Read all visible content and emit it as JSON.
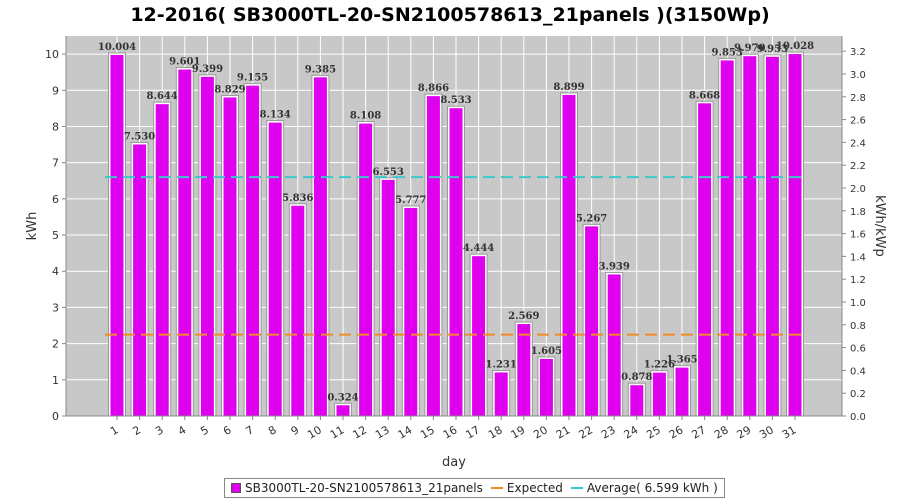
{
  "title": "12-2016( SB3000TL-20-SN2100578613_21panels )(3150Wp)",
  "colors": {
    "bar": "#e000f0",
    "bar_edge": "#ffffff",
    "bar_outline": "#9a9a9a",
    "plot_bg": "#c8c8c8",
    "grid": "#ffffff",
    "expected": "#f08c28",
    "average": "#3cc8c8"
  },
  "legend": {
    "series": "SB3000TL-20-SN2100578613_21panels",
    "expected": "Expected",
    "average": "Average( 6.599 kWh )"
  },
  "chart_data": {
    "type": "bar",
    "title": "12-2016( SB3000TL-20-SN2100578613_21panels )(3150Wp)",
    "xlabel": "day",
    "ylabel": "kWh",
    "y2label": "kWh/kWp",
    "ylim": [
      0,
      10.5
    ],
    "y2lim": [
      0,
      3.333
    ],
    "yticks": [
      "0",
      "1",
      "2",
      "3",
      "4",
      "5",
      "6",
      "7",
      "8",
      "9",
      "10"
    ],
    "y2ticks": [
      "0.0",
      "0.2",
      "0.4",
      "0.6",
      "0.8",
      "1.0",
      "1.2",
      "1.4",
      "1.6",
      "1.8",
      "2.0",
      "2.2",
      "2.4",
      "2.6",
      "2.8",
      "3.0",
      "3.2"
    ],
    "categories": [
      "1",
      "2",
      "3",
      "4",
      "5",
      "6",
      "7",
      "8",
      "9",
      "10",
      "11",
      "12",
      "13",
      "14",
      "15",
      "16",
      "17",
      "18",
      "19",
      "20",
      "21",
      "22",
      "23",
      "24",
      "25",
      "26",
      "27",
      "28",
      "29",
      "30",
      "31"
    ],
    "series": [
      {
        "name": "SB3000TL-20-SN2100578613_21panels",
        "values": [
          10.004,
          7.53,
          8.644,
          9.601,
          9.399,
          8.829,
          9.155,
          8.134,
          5.836,
          9.385,
          0.324,
          8.108,
          6.553,
          5.777,
          8.866,
          8.533,
          4.444,
          1.231,
          2.569,
          1.605,
          8.899,
          5.267,
          3.939,
          0.878,
          1.226,
          1.365,
          8.668,
          9.853,
          9.97,
          9.953,
          10.028
        ],
        "labels": [
          "10.004",
          "7.530",
          "8.644",
          "9.601",
          "9.399",
          "8.829",
          "9.155",
          "8.134",
          "5.836",
          "9.385",
          "0.324",
          "8.108",
          "6.553",
          "5.777",
          "8.866",
          "8.533",
          "4.444",
          "1.231",
          "2.569",
          "1.605",
          "8.899",
          "5.267",
          "3.939",
          "0.878",
          "1.226",
          "1.365",
          "8.668",
          "9.853",
          "9.970",
          "9.953",
          "10.028"
        ]
      }
    ],
    "expected": 2.25,
    "average": 6.599,
    "grid": true,
    "legend_position": "bottom"
  }
}
